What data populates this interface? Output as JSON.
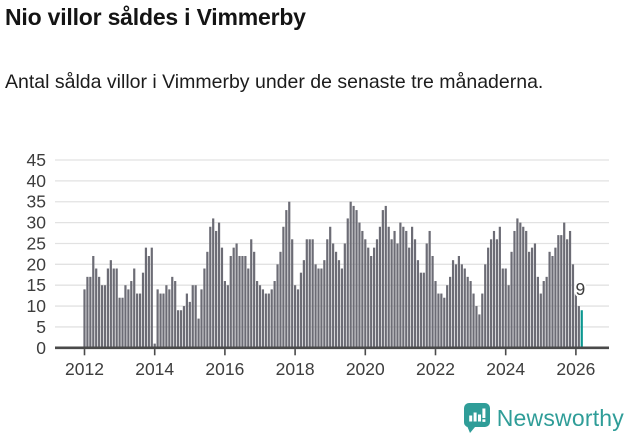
{
  "header": {
    "title": "Nio villor såldes i Vimmerby",
    "subtitle": "Antal sålda villor i Vimmerby under de senaste tre månaderna."
  },
  "chart_data": {
    "type": "bar",
    "title": "Nio villor såldes i Vimmerby",
    "subtitle": "Antal sålda villor i Vimmerby under de senaste tre månaderna.",
    "frequency": "monthly",
    "start_year": 2012,
    "values": [
      14,
      17,
      17,
      22,
      19,
      17,
      15,
      15,
      19,
      21,
      19,
      19,
      12,
      12,
      15,
      14,
      16,
      19,
      13,
      13,
      18,
      24,
      22,
      24,
      1,
      14,
      13,
      13,
      15,
      14,
      17,
      16,
      9,
      9,
      10,
      13,
      11,
      15,
      15,
      7,
      14,
      19,
      23,
      29,
      31,
      28,
      30,
      24,
      16,
      15,
      22,
      24,
      25,
      22,
      22,
      22,
      19,
      26,
      23,
      16,
      15,
      14,
      13,
      13,
      14,
      16,
      20,
      23,
      29,
      33,
      35,
      26,
      15,
      14,
      18,
      21,
      26,
      26,
      26,
      20,
      19,
      19,
      21,
      26,
      29,
      25,
      23,
      21,
      19,
      25,
      31,
      35,
      34,
      33,
      30,
      28,
      26,
      24,
      22,
      24,
      26,
      29,
      33,
      34,
      29,
      26,
      28,
      25,
      30,
      29,
      28,
      24,
      29,
      26,
      21,
      18,
      18,
      25,
      28,
      22,
      16,
      13,
      13,
      12,
      15,
      17,
      21,
      20,
      22,
      20,
      19,
      17,
      16,
      13,
      10,
      8,
      13,
      20,
      24,
      26,
      28,
      26,
      29,
      19,
      19,
      15,
      23,
      28,
      31,
      30,
      29,
      28,
      23,
      24,
      25,
      17,
      13,
      16,
      17,
      23,
      22,
      24,
      27,
      27,
      30,
      26,
      28,
      20,
      13,
      10,
      9
    ],
    "highlight_last": true,
    "highlight_label": "9",
    "ylim": [
      0,
      45
    ],
    "y_ticks": [
      0,
      5,
      10,
      15,
      20,
      25,
      30,
      35,
      40,
      45
    ],
    "x_ticks": [
      2012,
      2014,
      2016,
      2018,
      2020,
      2022,
      2024,
      2026
    ],
    "grid": true,
    "legend": "none",
    "bar_color": "#6c6c75",
    "highlight_color": "#0b9790",
    "grid_color": "#e2e2e2",
    "axis_color": "#4a4a4a",
    "tick_label_color": "#3d3d3d"
  },
  "footer": {
    "brand": "Newsworthy",
    "brand_color": "#2f9d98",
    "logo_icon": "newsworthy-chart-bubble-icon"
  }
}
